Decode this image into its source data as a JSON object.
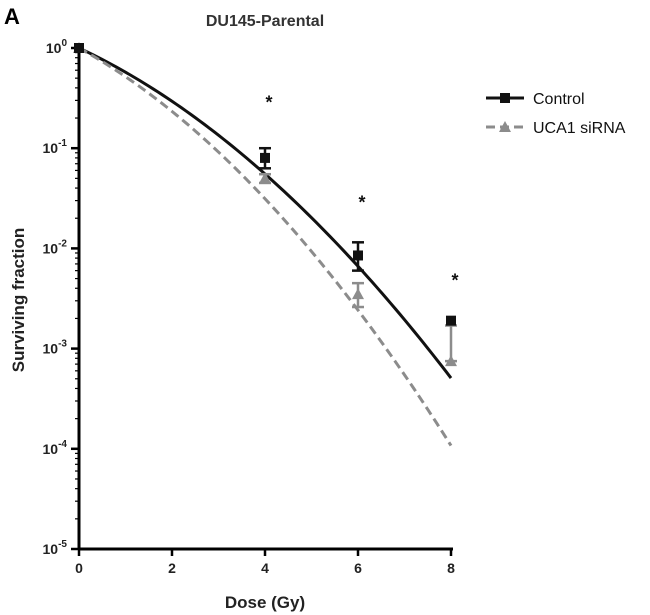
{
  "panel_label": "A",
  "chart_data": {
    "type": "line",
    "title": "DU145-Parental",
    "xlabel": "Dose (Gy)",
    "ylabel": "Surviving fraction",
    "xlim": [
      0,
      8
    ],
    "ylim": [
      1e-05,
      1
    ],
    "y_scale": "log",
    "x_ticks": [
      "0",
      "2",
      "4",
      "6",
      "8"
    ],
    "y_ticks": [
      {
        "base": "10",
        "exp": "0"
      },
      {
        "base": "10",
        "exp": "-1"
      },
      {
        "base": "10",
        "exp": "-2"
      },
      {
        "base": "10",
        "exp": "-3"
      },
      {
        "base": "10",
        "exp": "-4"
      },
      {
        "base": "10",
        "exp": "-5"
      }
    ],
    "grid": false,
    "legend_position": "top-right",
    "series": [
      {
        "name": "Control",
        "color": "#111111",
        "line_style": "solid",
        "marker": "square",
        "points": [
          {
            "x": 0,
            "y": 1.0,
            "err": 0
          },
          {
            "x": 4,
            "y": 0.08,
            "err_low": 0.063,
            "err_high": 0.1
          },
          {
            "x": 6,
            "y": 0.0085,
            "err_low": 0.006,
            "err_high": 0.0115
          },
          {
            "x": 8,
            "y": 0.0019,
            "err_low": 0.0019,
            "err_high": 0.0019
          }
        ],
        "fit": {
          "alpha": 0.5,
          "beta": 0.056
        }
      },
      {
        "name": "UCA1 siRNA",
        "color": "#8c8c8c",
        "line_style": "dashed",
        "marker": "triangle",
        "points": [
          {
            "x": 0,
            "y": 1.0,
            "err": 0
          },
          {
            "x": 4,
            "y": 0.05,
            "err_low": 0.045,
            "err_high": 0.055
          },
          {
            "x": 6,
            "y": 0.0035,
            "err_low": 0.0026,
            "err_high": 0.0045
          },
          {
            "x": 8,
            "y": 0.00075,
            "err_low": 0.00075,
            "err_high": 0.0017
          }
        ],
        "fit": {
          "alpha": 0.59,
          "beta": 0.069
        }
      }
    ],
    "annotations": [
      {
        "text": "*",
        "x": 4,
        "y": 0.3
      },
      {
        "text": "*",
        "x": 6,
        "y": 0.03
      },
      {
        "text": "*",
        "x": 8,
        "y": 0.005
      }
    ]
  }
}
